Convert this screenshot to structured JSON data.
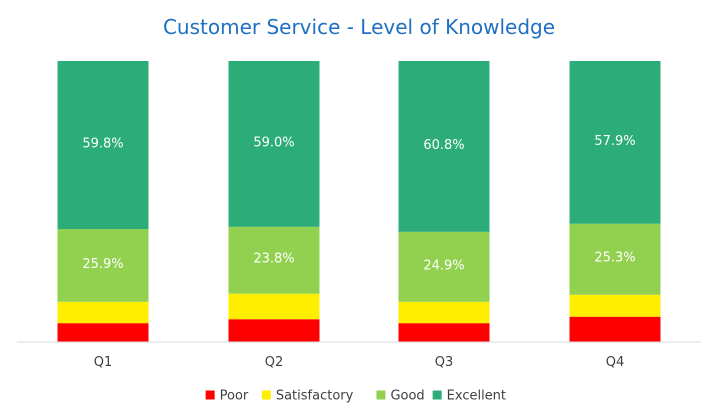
{
  "chart_data": {
    "type": "bar",
    "stacked": true,
    "normalized_percent": true,
    "title": "Customer Service - Level of Knowledge",
    "xlabel": "",
    "ylabel": "",
    "categories": [
      "Q1",
      "Q2",
      "Q3",
      "Q4"
    ],
    "series": [
      {
        "name": "Poor",
        "color": "#ff0000",
        "values": [
          6.7,
          8.1,
          6.7,
          9.0
        ],
        "labels_shown": false
      },
      {
        "name": "Satisfactory",
        "color": "#ffee00",
        "values": [
          7.6,
          9.1,
          7.6,
          7.8
        ],
        "labels_shown": false
      },
      {
        "name": "Good",
        "color": "#92d050",
        "values": [
          25.9,
          23.8,
          24.9,
          25.3
        ],
        "labels": [
          "25.9%",
          "23.8%",
          "24.9%",
          "25.3%"
        ],
        "labels_shown": true
      },
      {
        "name": "Excellent",
        "color": "#2bac79",
        "values": [
          59.8,
          59.0,
          60.8,
          57.9
        ],
        "labels": [
          "59.8%",
          "59.0%",
          "60.8%",
          "57.9%"
        ],
        "labels_shown": true
      }
    ],
    "ylim": [
      0,
      100
    ],
    "grid": false,
    "legend": "bottom",
    "title_color": "#1f70c1",
    "axis_color": "#d9d9d9"
  }
}
